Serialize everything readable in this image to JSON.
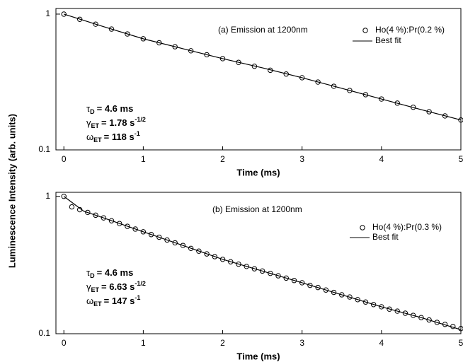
{
  "y_label": "Luminescence Intensity (arb. units)",
  "chart_data": [
    {
      "type": "line",
      "yscale": "log",
      "title": "(a) Emission at 1200nm",
      "x_label": "Time (ms)",
      "xlim": [
        -0.1,
        5
      ],
      "xticks": [
        0,
        1,
        2,
        3,
        4,
        5
      ],
      "ylim": [
        0.1,
        1.1
      ],
      "yticks": [
        0.1,
        1
      ],
      "annotations": [
        {
          "symbol": "τ",
          "subscript": "D",
          "value": "= 4.6 ms"
        },
        {
          "symbol": "γ",
          "subscript": "ET",
          "value": "= 1.78 s",
          "superscript": "-1/2"
        },
        {
          "symbol": "ω",
          "subscript": "ET",
          "value": "= 118 s",
          "superscript": "-1"
        }
      ],
      "series": [
        {
          "name": "Ho(4 %):Pr(0.2 %)",
          "marker": "circle",
          "color": "#000000",
          "x": [
            0,
            0.2,
            0.4,
            0.6,
            0.8,
            1.0,
            1.2,
            1.4,
            1.6,
            1.8,
            2.0,
            2.2,
            2.4,
            2.6,
            2.8,
            3.0,
            3.2,
            3.4,
            3.6,
            3.8,
            4.0,
            4.2,
            4.4,
            4.6,
            4.8,
            5.0
          ],
          "values": [
            1.0,
            0.916,
            0.843,
            0.776,
            0.714,
            0.658,
            0.615,
            0.575,
            0.537,
            0.502,
            0.47,
            0.441,
            0.413,
            0.386,
            0.362,
            0.34,
            0.316,
            0.294,
            0.274,
            0.255,
            0.237,
            0.221,
            0.206,
            0.191,
            0.178,
            0.166
          ]
        },
        {
          "name": "Best fit",
          "marker": "line",
          "color": "#000000",
          "x": [
            0,
            0.5,
            1.0,
            1.5,
            2.0,
            2.5,
            3.0,
            3.5,
            4.0,
            4.5,
            5.0
          ],
          "values": [
            1.0,
            0.808,
            0.658,
            0.556,
            0.47,
            0.402,
            0.34,
            0.284,
            0.237,
            0.198,
            0.166
          ]
        }
      ]
    },
    {
      "type": "line",
      "yscale": "log",
      "title": "(b) Emission at 1200nm",
      "x_label": "Time (ms)",
      "xlim": [
        -0.1,
        5
      ],
      "xticks": [
        0,
        1,
        2,
        3,
        4,
        5
      ],
      "ylim": [
        0.1,
        1.07
      ],
      "yticks": [
        0.1,
        1
      ],
      "annotations": [
        {
          "symbol": "τ",
          "subscript": "D",
          "value": "= 4.6 ms"
        },
        {
          "symbol": "γ",
          "subscript": "ET",
          "value": "= 6.63 s",
          "superscript": "-1/2"
        },
        {
          "symbol": "ω",
          "subscript": "ET",
          "value": "= 147 s",
          "superscript": "-1"
        }
      ],
      "series": [
        {
          "name": "Ho(4 %):Pr(0.3 %)",
          "marker": "circle",
          "color": "#000000",
          "x": [
            0,
            0.1,
            0.2,
            0.3,
            0.4,
            0.5,
            0.6,
            0.7,
            0.8,
            0.9,
            1.0,
            1.1,
            1.2,
            1.3,
            1.4,
            1.5,
            1.6,
            1.7,
            1.8,
            1.9,
            2.0,
            2.1,
            2.2,
            2.3,
            2.4,
            2.5,
            2.6,
            2.7,
            2.8,
            2.9,
            3.0,
            3.1,
            3.2,
            3.3,
            3.4,
            3.5,
            3.6,
            3.7,
            3.8,
            3.9,
            4.0,
            4.1,
            4.2,
            4.3,
            4.4,
            4.5,
            4.6,
            4.7,
            4.8,
            4.9,
            5.0
          ],
          "values": [
            1.0,
            0.838,
            0.8,
            0.764,
            0.729,
            0.697,
            0.664,
            0.634,
            0.605,
            0.578,
            0.552,
            0.527,
            0.504,
            0.481,
            0.459,
            0.439,
            0.418,
            0.399,
            0.381,
            0.364,
            0.348,
            0.334,
            0.321,
            0.309,
            0.297,
            0.286,
            0.275,
            0.264,
            0.254,
            0.244,
            0.235,
            0.225,
            0.217,
            0.208,
            0.2,
            0.192,
            0.185,
            0.177,
            0.17,
            0.163,
            0.157,
            0.151,
            0.146,
            0.141,
            0.136,
            0.131,
            0.126,
            0.121,
            0.117,
            0.113,
            0.109
          ]
        },
        {
          "name": "Best fit",
          "marker": "line",
          "color": "#000000",
          "x": [
            0,
            0.25,
            0.5,
            1.0,
            1.5,
            2.0,
            2.5,
            3.0,
            3.5,
            4.0,
            4.5,
            5.0
          ],
          "values": [
            1.0,
            0.78,
            0.697,
            0.552,
            0.439,
            0.348,
            0.286,
            0.235,
            0.192,
            0.157,
            0.131,
            0.107
          ]
        }
      ]
    }
  ]
}
